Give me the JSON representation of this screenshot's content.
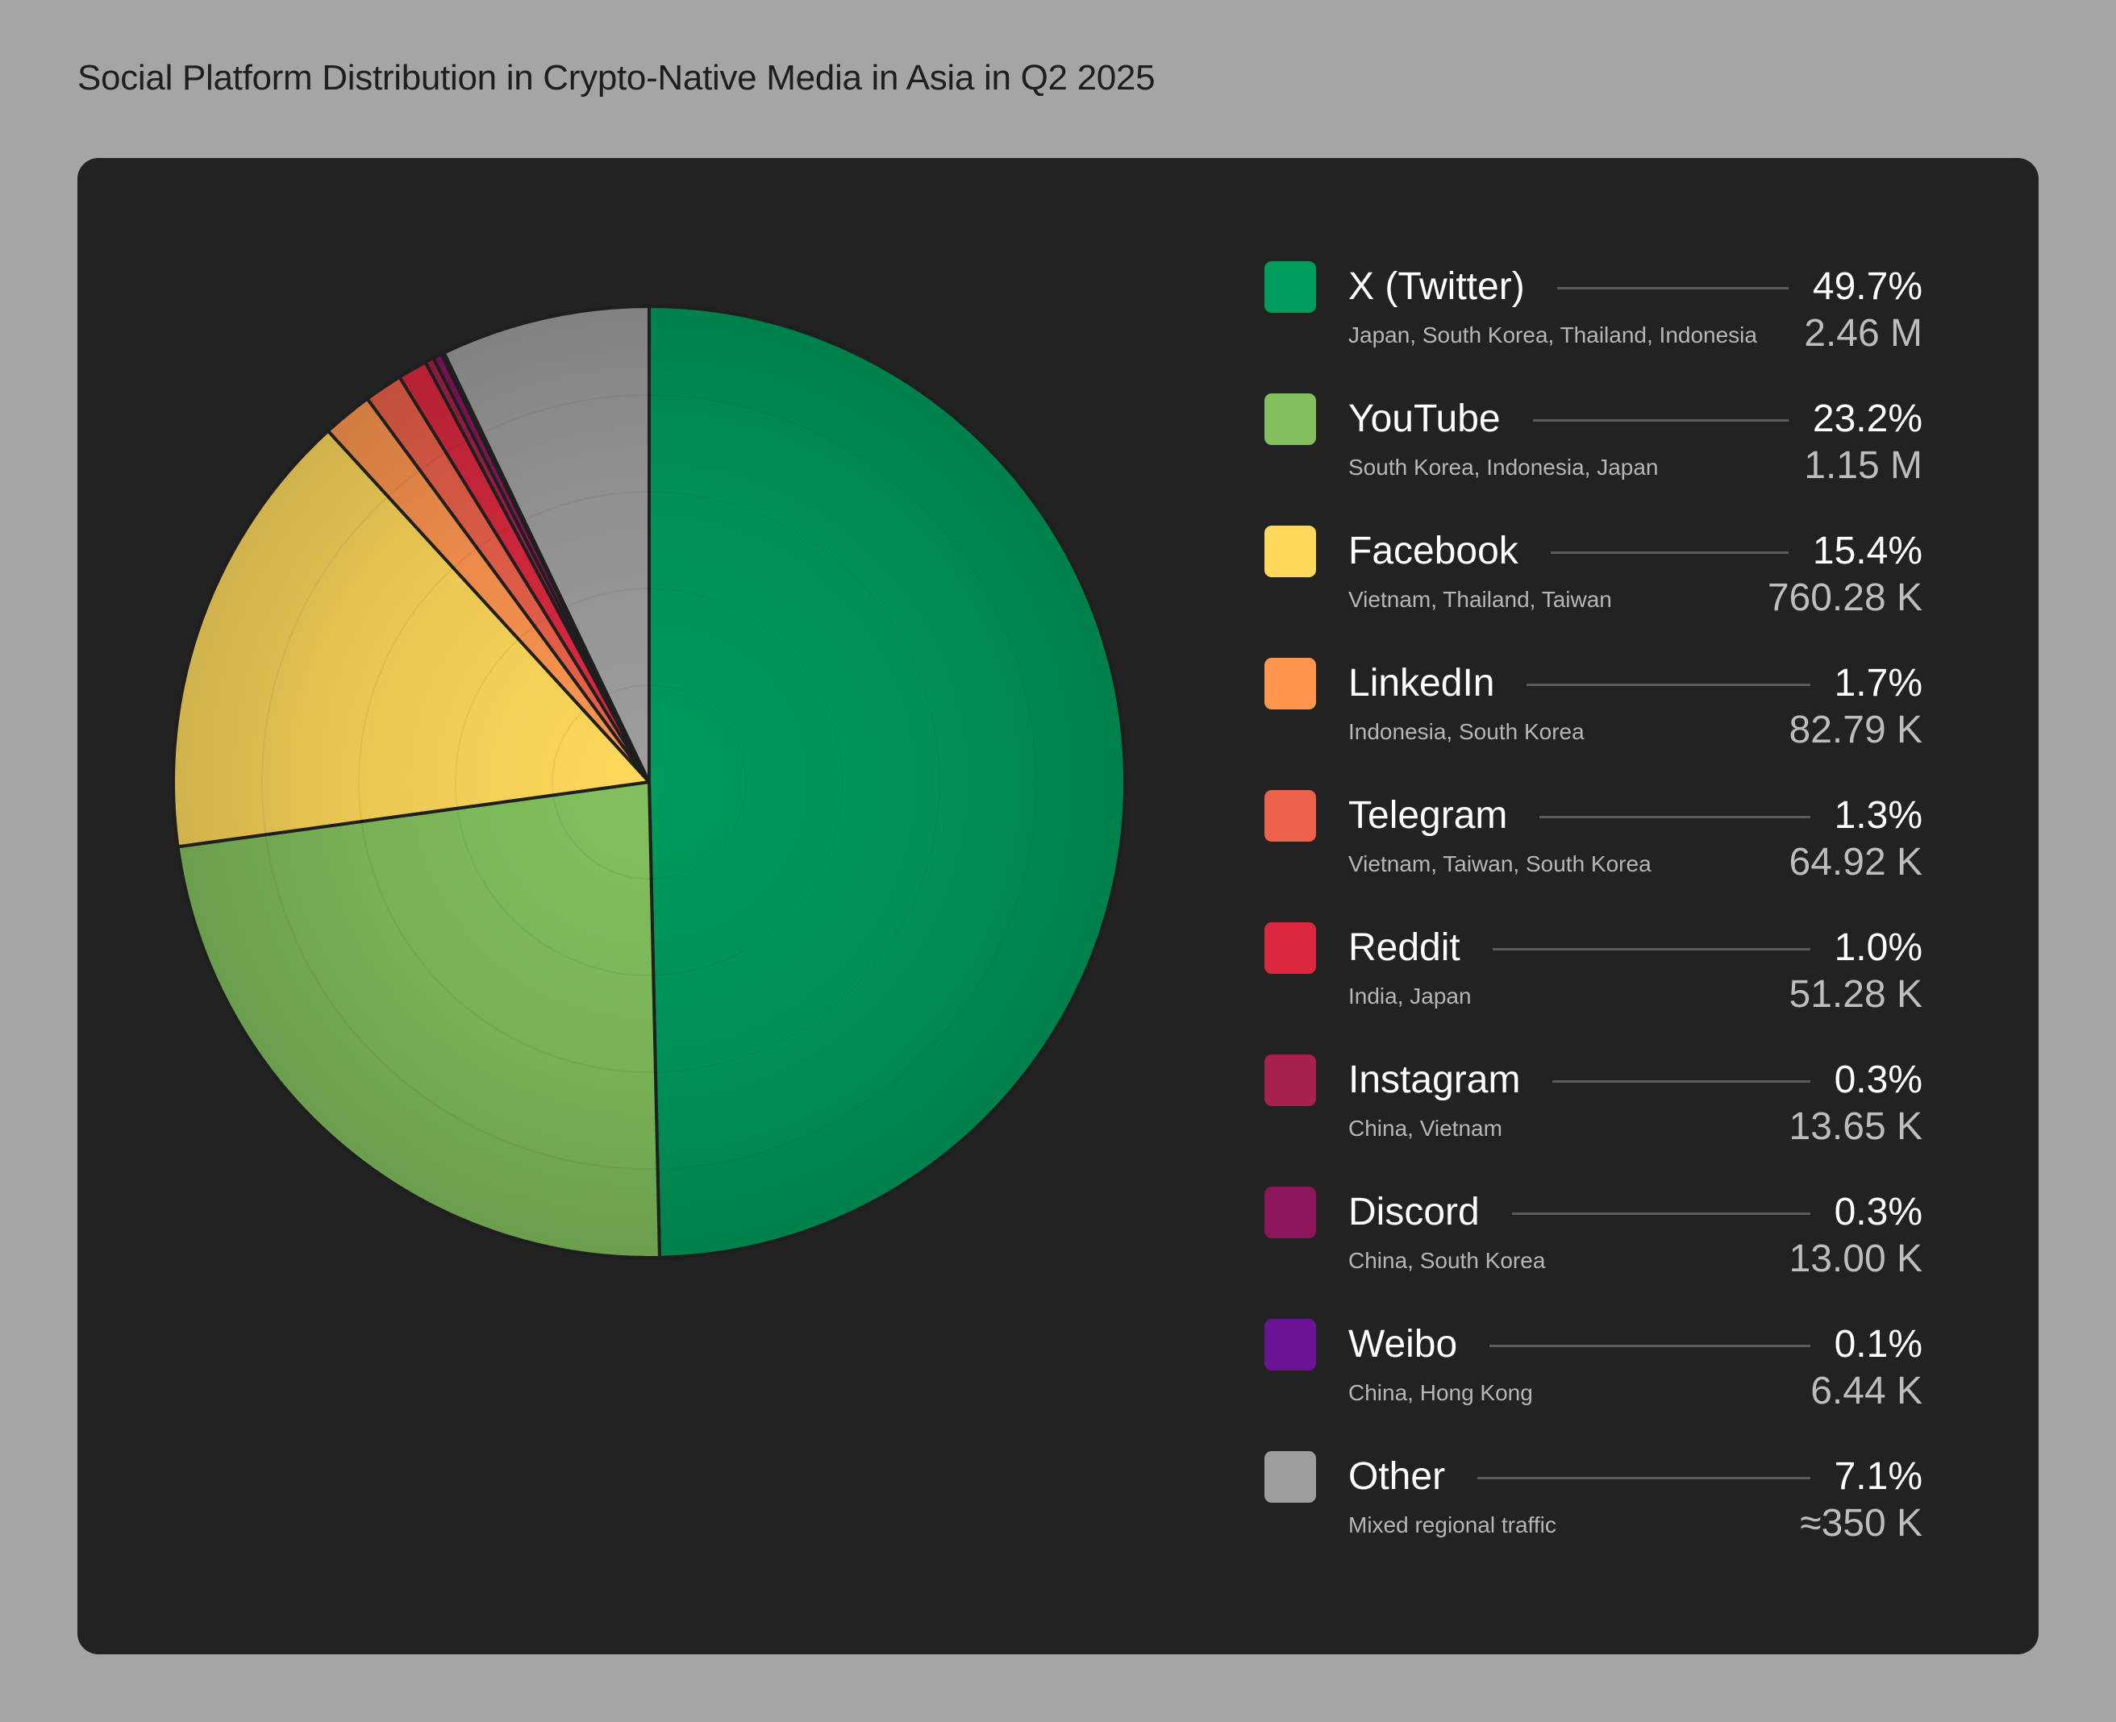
{
  "title": "Social Platform Distribution in Crypto-Native Media in Asia in Q2 2025",
  "chart_data": {
    "type": "pie",
    "title": "Social Platform Distribution in Crypto-Native Media in Asia in Q2 2025",
    "legend_placement": "right",
    "series": [
      {
        "name": "X (Twitter)",
        "percent": 49.7,
        "percent_label": "49.7%",
        "value_label": "2.46 M",
        "regions": "Japan, South Korea, Thailand, Indonesia",
        "color": "#009c5b"
      },
      {
        "name": "YouTube",
        "percent": 23.2,
        "percent_label": "23.2%",
        "value_label": "1.15 M",
        "regions": "South Korea, Indonesia, Japan",
        "color": "#83c15e"
      },
      {
        "name": "Facebook",
        "percent": 15.4,
        "percent_label": "15.4%",
        "value_label": "760.28 K",
        "regions": "Vietnam, Thailand, Taiwan",
        "color": "#ffd95b"
      },
      {
        "name": "LinkedIn",
        "percent": 1.7,
        "percent_label": "1.7%",
        "value_label": "82.79 K",
        "regions": "Indonesia, South Korea",
        "color": "#ff9650"
      },
      {
        "name": "Telegram",
        "percent": 1.3,
        "percent_label": "1.3%",
        "value_label": "64.92 K",
        "regions": "Vietnam, Taiwan, South Korea",
        "color": "#ec624b"
      },
      {
        "name": "Reddit",
        "percent": 1.0,
        "percent_label": "1.0%",
        "value_label": "51.28 K",
        "regions": "India, Japan",
        "color": "#dc2940"
      },
      {
        "name": "Instagram",
        "percent": 0.3,
        "percent_label": "0.3%",
        "value_label": "13.65 K",
        "regions": "China, Vietnam",
        "color": "#a6214b"
      },
      {
        "name": "Discord",
        "percent": 0.3,
        "percent_label": "0.3%",
        "value_label": "13.00 K",
        "regions": "China, South Korea",
        "color": "#8b165b"
      },
      {
        "name": "Weibo",
        "percent": 0.1,
        "percent_label": "0.1%",
        "value_label": "6.44 K",
        "regions": "China, Hong Kong",
        "color": "#6a1493"
      },
      {
        "name": "Other",
        "percent": 7.1,
        "percent_label": "7.1%",
        "value_label": "≈350 K",
        "regions": "Mixed regional traffic",
        "color": "#9e9e9e"
      }
    ]
  }
}
